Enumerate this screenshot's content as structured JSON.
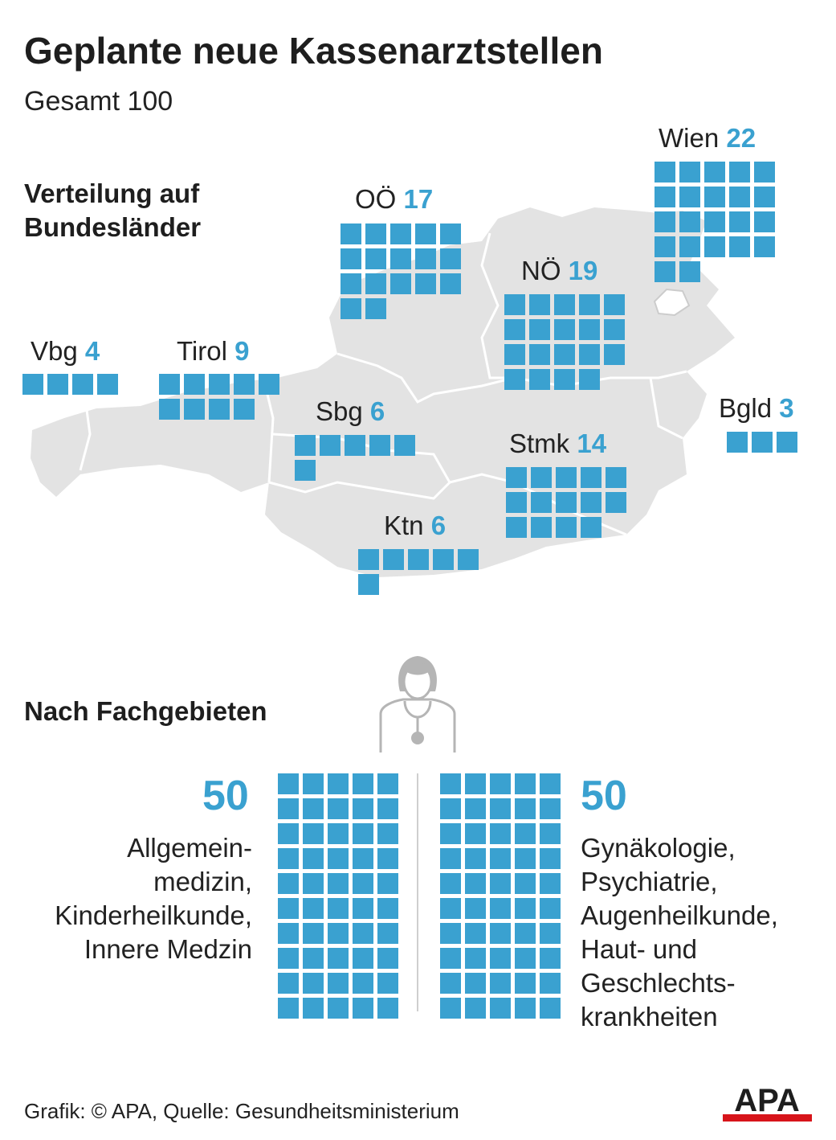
{
  "title": "Geplante neue Kassenarztstellen",
  "subtitle": "Gesamt 100",
  "section_regions": "Verteilung auf Bundesländer",
  "section_specialties": "Nach Fachgebieten",
  "footer": "Grafik: © APA, Quelle: Gesundheitsministerium",
  "logo_text": "APA",
  "colors": {
    "accent": "#3aa1d0",
    "map": "#e3e3e3",
    "map_border": "#ffffff",
    "logo_red": "#d7141a"
  },
  "icons": {
    "doctor": "doctor-icon",
    "logo": "apa-logo-icon"
  },
  "chart_data": [
    {
      "type": "unit-grid",
      "title": "Verteilung auf Bundesländer",
      "unit": "Kassenarztstelle",
      "categories": [
        "Vbg",
        "Tirol",
        "Sbg",
        "Ktn",
        "OÖ",
        "NÖ",
        "Stmk",
        "Wien",
        "Bgld"
      ],
      "values": [
        4,
        9,
        6,
        6,
        17,
        19,
        14,
        22,
        3
      ]
    },
    {
      "type": "unit-grid",
      "title": "Nach Fachgebieten",
      "categories": [
        "Allgemein-\nmedizin,\nKinderheilkunde,\nInnere Medzin",
        "Gynäkologie,\nPsychiatrie,\nAugenheilkunde,\nHaut- und\nGeschlechts-\nkrankheiten"
      ],
      "values": [
        50,
        50
      ]
    }
  ],
  "regions": [
    {
      "id": "vbg",
      "name": "Vbg",
      "value": 4
    },
    {
      "id": "tirol",
      "name": "Tirol",
      "value": 9
    },
    {
      "id": "sbg",
      "name": "Sbg",
      "value": 6
    },
    {
      "id": "ktn",
      "name": "Ktn",
      "value": 6
    },
    {
      "id": "ooe",
      "name": "OÖ",
      "value": 17
    },
    {
      "id": "noe",
      "name": "NÖ",
      "value": 19
    },
    {
      "id": "stmk",
      "name": "Stmk",
      "value": 14
    },
    {
      "id": "wien",
      "name": "Wien",
      "value": 22
    },
    {
      "id": "bgld",
      "name": "Bgld",
      "value": 3
    }
  ],
  "specialties": [
    {
      "id": "left",
      "value": 50,
      "label": "Allgemein-\nmedizin,\nKinderheilkunde,\nInnere Medzin"
    },
    {
      "id": "right",
      "value": 50,
      "label": "Gynäkologie,\nPsychiatrie,\nAugenheilkunde,\nHaut- und\nGeschlechts-\nkrankheiten"
    }
  ]
}
